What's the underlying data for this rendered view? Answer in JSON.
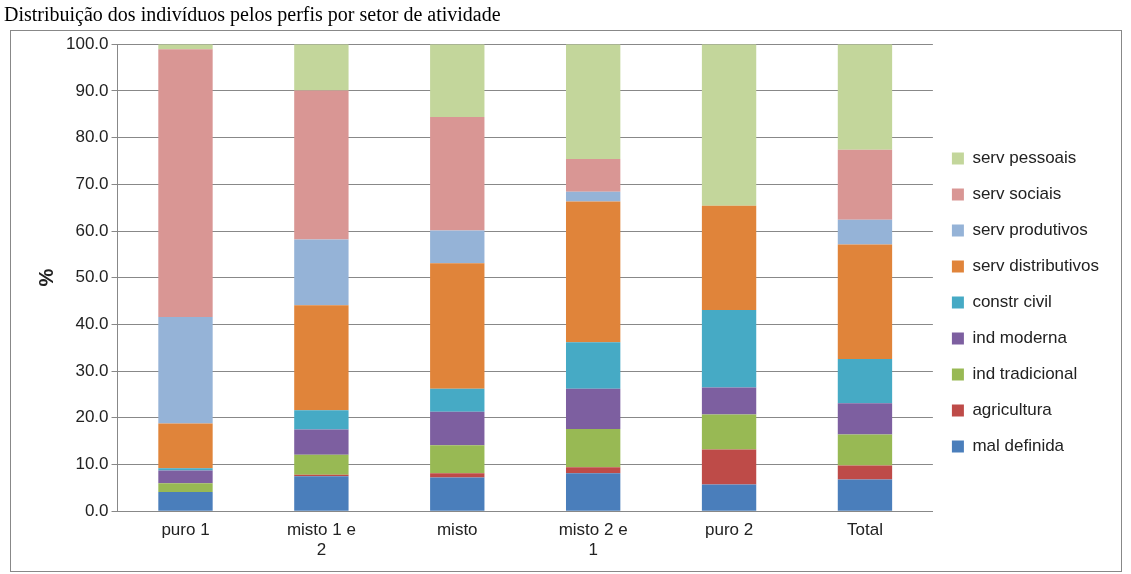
{
  "chart_data": {
    "type": "bar",
    "stacked": true,
    "title": "Distribuição dos indivíduos pelos perfis por setor de atividade",
    "ylabel": "%",
    "categories": [
      "puro 1",
      "misto 1 e 2",
      "misto",
      "misto 2 e 1",
      "puro 2",
      "Total"
    ],
    "series": [
      {
        "name": "mal definida",
        "color": "#4a7ebb",
        "values": [
          4.1,
          7.5,
          7.2,
          8.1,
          5.7,
          6.8
        ]
      },
      {
        "name": "agricultura",
        "color": "#be4b48",
        "values": [
          0,
          0.3,
          0.9,
          1.3,
          7.5,
          3.0
        ]
      },
      {
        "name": "ind tradicional",
        "color": "#98b954",
        "values": [
          1.9,
          4.3,
          6.0,
          8.2,
          7.5,
          6.6
        ]
      },
      {
        "name": "ind moderna",
        "color": "#7d5fa0",
        "values": [
          2.7,
          5.4,
          7.2,
          8.6,
          5.8,
          6.7
        ]
      },
      {
        "name": "constr civil",
        "color": "#46aac5",
        "values": [
          0.5,
          4.1,
          4.9,
          10.0,
          16.6,
          9.5
        ]
      },
      {
        "name": "serv distributivos",
        "color": "#e0843a",
        "values": [
          9.6,
          22.5,
          26.9,
          30.1,
          22.3,
          24.5
        ]
      },
      {
        "name": "serv produtivos",
        "color": "#95b3d7",
        "values": [
          22.8,
          14.1,
          7.0,
          2.1,
          0,
          5.3
        ]
      },
      {
        "name": "serv sociais",
        "color": "#d99694",
        "values": [
          57.3,
          31.9,
          24.3,
          7.0,
          0,
          15.0
        ]
      },
      {
        "name": "serv pessoais",
        "color": "#c3d69b",
        "values": [
          1.1,
          9.9,
          15.6,
          24.6,
          34.6,
          22.6
        ]
      }
    ],
    "ylim": [
      0,
      100
    ],
    "yticks": [
      {
        "value": 0,
        "label": "0.0"
      },
      {
        "value": 10,
        "label": "10.0"
      },
      {
        "value": 20,
        "label": "20.0"
      },
      {
        "value": 30,
        "label": "30.0"
      },
      {
        "value": 40,
        "label": "40.0"
      },
      {
        "value": 50,
        "label": "50.0"
      },
      {
        "value": 60,
        "label": "60.0"
      },
      {
        "value": 70,
        "label": "70.0"
      },
      {
        "value": 80,
        "label": "80.0"
      },
      {
        "value": 90,
        "label": "90.0"
      },
      {
        "value": 100,
        "label": "100.0"
      }
    ],
    "grid": "y",
    "legend": "right"
  }
}
